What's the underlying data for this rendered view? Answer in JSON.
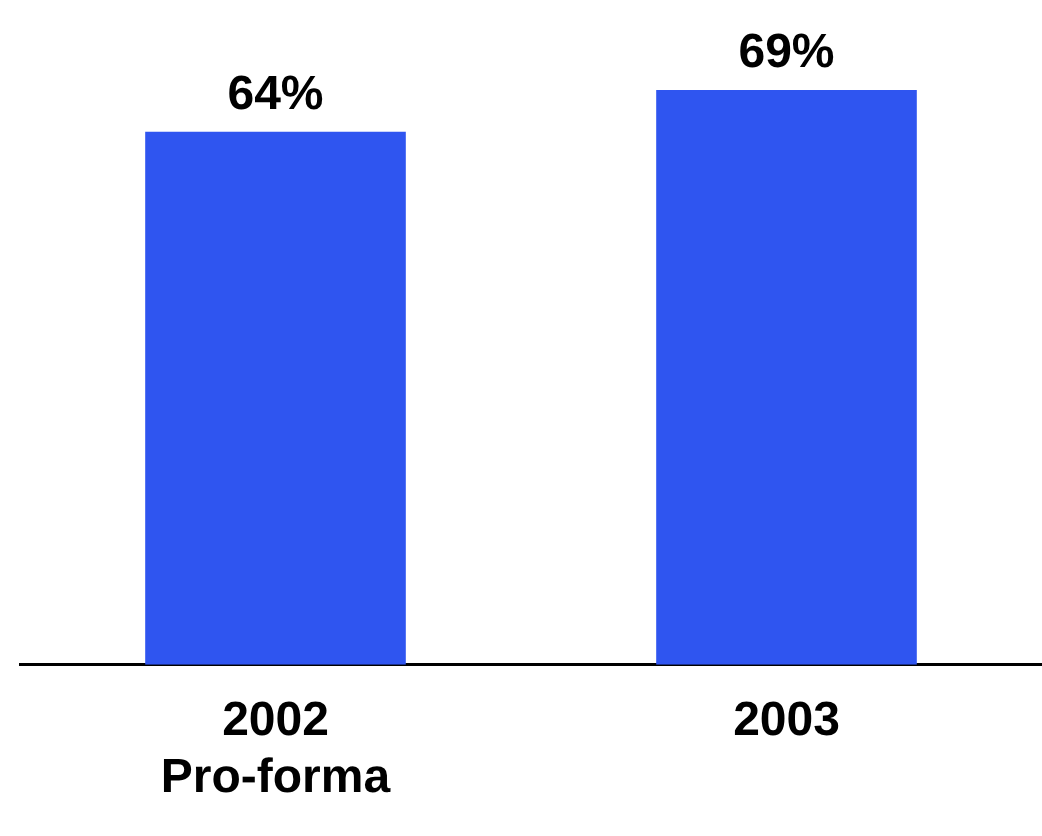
{
  "chart_data": {
    "type": "bar",
    "categories": [
      "2002\nPro-forma",
      "2003"
    ],
    "values": [
      64,
      69
    ],
    "value_labels": [
      "64%",
      "69%"
    ],
    "color": "#2f55f0",
    "legend": false,
    "grid": false,
    "tick_labels": "x"
  }
}
